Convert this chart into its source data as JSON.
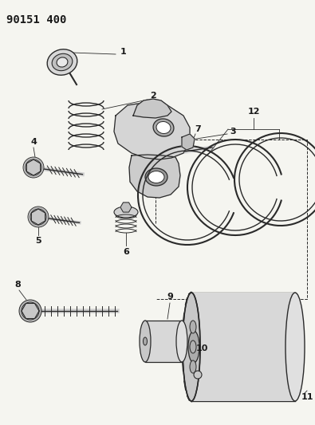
{
  "title": "90151 400",
  "bg_color": "#f5f5f0",
  "line_color": "#2a2a2a",
  "label_color": "#1a1a1a",
  "title_fontsize": 10,
  "label_fontsize": 8,
  "fig_w": 3.95,
  "fig_h": 5.33
}
